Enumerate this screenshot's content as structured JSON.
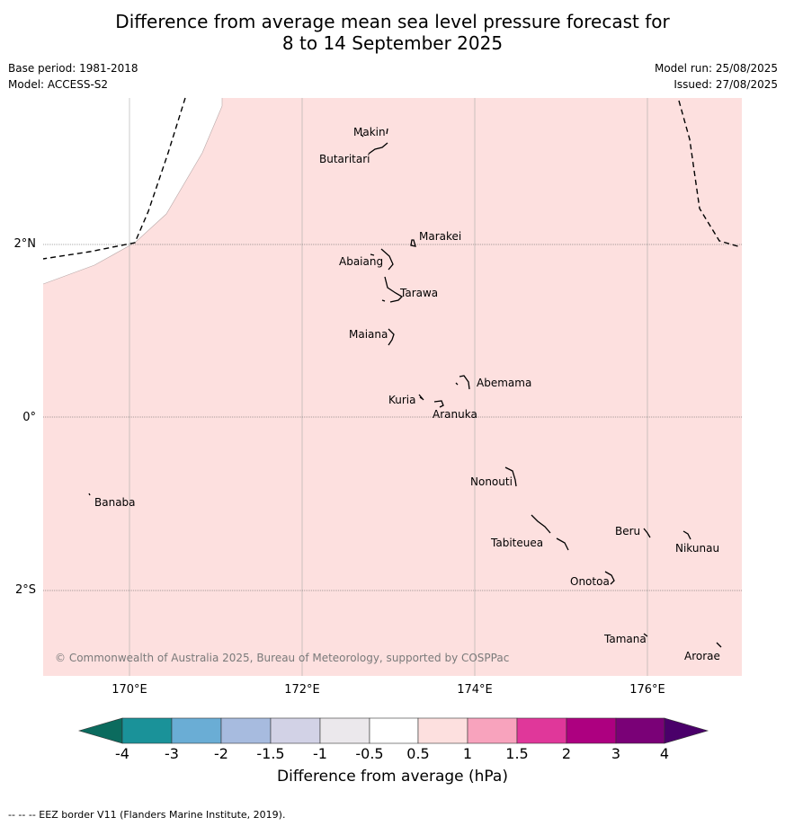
{
  "title_line1": "Difference from average mean sea level pressure forecast for",
  "title_line2": "8 to 14 September 2025",
  "base_period": "Base period: 1981-2018",
  "model": "Model: ACCESS-S2",
  "model_run": "Model run: 25/08/2025",
  "issued": "Issued: 27/08/2025",
  "lat_labels": [
    "2°N",
    "0°",
    "2°S"
  ],
  "lon_labels": [
    "170°E",
    "172°E",
    "174°E",
    "176°E"
  ],
  "copyright": "© Commonwealth of Australia 2025, Bureau of Meteorology, supported by COSPPac",
  "islands": [
    {
      "name": "Makin"
    },
    {
      "name": "Butaritari"
    },
    {
      "name": "Marakei"
    },
    {
      "name": "Abaiang"
    },
    {
      "name": "Tarawa"
    },
    {
      "name": "Maiana"
    },
    {
      "name": "Abemama"
    },
    {
      "name": "Kuria"
    },
    {
      "name": "Aranuka"
    },
    {
      "name": "Nonouti"
    },
    {
      "name": "Banaba"
    },
    {
      "name": "Beru"
    },
    {
      "name": "Tabiteuea"
    },
    {
      "name": "Nikunau"
    },
    {
      "name": "Onotoa"
    },
    {
      "name": "Tamana"
    },
    {
      "name": "Arorae"
    }
  ],
  "colorbar": {
    "title": "Difference from average (hPa)",
    "ticks": [
      "-4",
      "-3",
      "-2",
      "-1.5",
      "-1",
      "-0.5",
      "0.5",
      "1",
      "1.5",
      "2",
      "3",
      "4"
    ],
    "colors": [
      "#0b6b5e",
      "#1a9299",
      "#6aadd5",
      "#a7bbdf",
      "#d2d2e6",
      "#ebe8ec",
      "#ffffff",
      "#fde0df",
      "#f8a3bd",
      "#e0379a",
      "#ad0080",
      "#7a0177",
      "#4a006a"
    ]
  },
  "map_fill_color": "#fde0df",
  "footer": "--  --  -- EEZ border V11 (Flanders Marine Institute, 2019)."
}
